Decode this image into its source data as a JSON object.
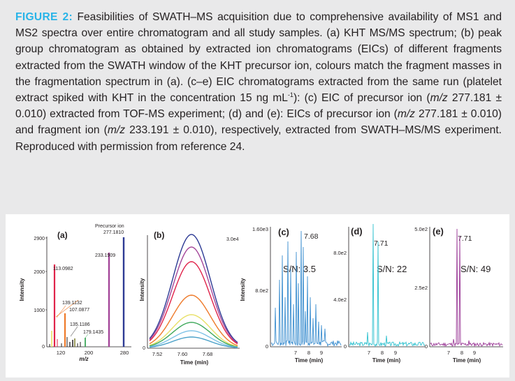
{
  "caption": {
    "label": "FIGURE 2:",
    "s1": " Feasibilities of SWATH–MS acquisition due to comprehensive availability of MS1 and MS2 spectra over entire chromatogram and all study samples. (a) KHT MS/MS spectrum; (b) peak group chromatogram as obtained by extracted ion chromatograms (EICs) of different fragments extracted from the SWATH window of the KHT precursor ion, colours match the fragment masses in the fragmentation spectrum in (a). (c–e) EIC chromatograms extracted from the same run (platelet extract spiked with KHT in the concentration 15 ng mL",
    "sup": "-1",
    "s2": "): (c) EIC of precursor ion (",
    "mz1": "m/z",
    "s3": " 277.181 ± 0.010) extracted from TOF-MS experiment; (d) and (e): EICs of precursor ion (",
    "mz2": "m/z",
    "s4": " 277.181 ± 0.010) and fragment ion (",
    "mz3": "m/z",
    "s5": " 233.191 ± 0.010), respectively, extracted from SWATH–MS/MS experiment. Reproduced with permission from reference 24."
  },
  "panel_a": {
    "label": "(a)",
    "title": "Precursor ion",
    "ylabel": "Intensity",
    "xlabel": "m/z",
    "yticks": [
      "2900",
      "2000",
      "1000",
      "0"
    ],
    "xticks": [
      "120",
      "200",
      "280"
    ],
    "peak_labels": [
      "277.1810",
      "233.1909",
      "113.0982",
      "139.1132",
      "107.0877",
      "135.1186",
      "179.1435"
    ]
  },
  "panel_b": {
    "label": "(b)",
    "ylabel": "Intensity",
    "xlabel": "Time (min)",
    "ymax_label": "3.0e4",
    "ymin_label": "0",
    "xticks": [
      "7.52",
      "7.60",
      "7.68"
    ]
  },
  "panel_c": {
    "label": "(c)",
    "ylabel": "Intensity",
    "yticks": [
      "1.60e3",
      "8.0e2",
      "0"
    ],
    "peak_rt": "7.68",
    "sn": "S/N: 3.5",
    "xticks": [
      "7",
      "8",
      "9"
    ],
    "xlabel": "Time (min)"
  },
  "panel_d": {
    "label": "(d)",
    "yticks": [
      "8.0e2",
      "4.0e2",
      "0"
    ],
    "peak_rt": "7.71",
    "sn": "S/N: 22",
    "xticks": [
      "7",
      "8",
      "9"
    ],
    "xlabel": "Time (min)"
  },
  "panel_e": {
    "label": "(e)",
    "yticks": [
      "5.0e2",
      "2.5e2",
      "0"
    ],
    "peak_rt": "7.71",
    "sn": "S/N: 49",
    "xticks": [
      "7",
      "8",
      "9"
    ],
    "xlabel": "Time (min)"
  },
  "colors": {
    "caption_label": "#28b4e8",
    "c_trace": "#3d8fd0",
    "d_trace": "#2fc1cf",
    "e_trace": "#9b3a97"
  }
}
